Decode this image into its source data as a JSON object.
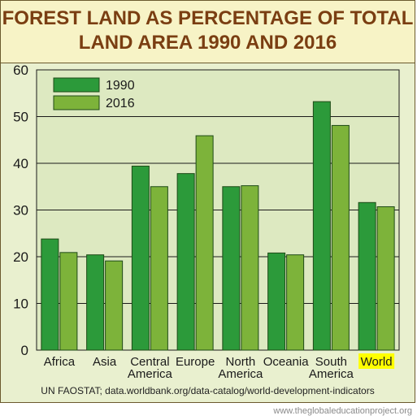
{
  "chart_data": {
    "type": "bar",
    "title_lines": [
      "FOREST LAND AS PERCENTAGE OF TOTAL",
      "LAND AREA 1990 AND 2016"
    ],
    "categories": [
      {
        "label": [
          "Africa"
        ]
      },
      {
        "label": [
          "Asia"
        ]
      },
      {
        "label": [
          "Central",
          "America"
        ]
      },
      {
        "label": [
          "Europe"
        ]
      },
      {
        "label": [
          "North",
          "America"
        ]
      },
      {
        "label": [
          "Oceania"
        ]
      },
      {
        "label": [
          "South",
          "America"
        ]
      },
      {
        "label": [
          "World"
        ],
        "highlight": true
      }
    ],
    "series": [
      {
        "name": "1990",
        "color": "#2c9a3a",
        "values": [
          23.8,
          20.4,
          39.4,
          37.8,
          35.0,
          20.8,
          53.2,
          31.6
        ]
      },
      {
        "name": "2016",
        "color": "#7db33a",
        "values": [
          20.9,
          19.1,
          35.0,
          45.9,
          35.2,
          20.4,
          48.1,
          30.7
        ]
      }
    ],
    "ylim": [
      0,
      60
    ],
    "yticks": [
      0,
      10,
      20,
      30,
      40,
      50,
      60
    ],
    "grid": true,
    "legend_position": "top-left",
    "highlight_color": "#ffff00"
  },
  "source": "UN FAOSTAT; data.worldbank.org/data-catalog/world-development-indicators",
  "credit": "www.theglobaleducationproject.org"
}
